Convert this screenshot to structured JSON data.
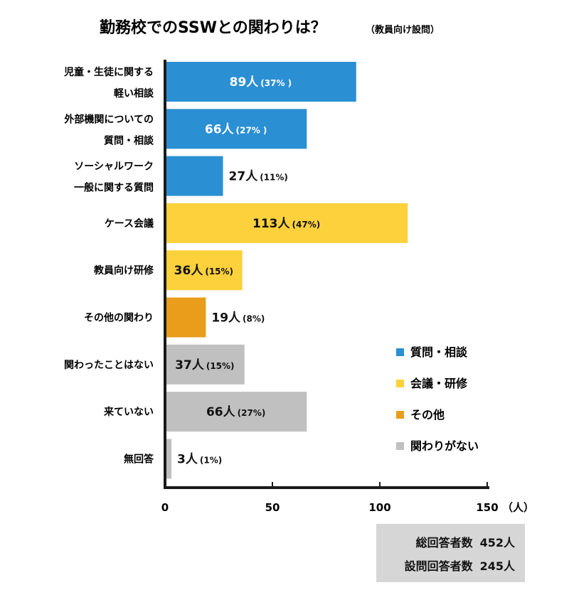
{
  "chart_data": {
    "type": "bar",
    "orientation": "horizontal",
    "title": "勤務校でのSSWとの関わりは？",
    "subtitle": "（教員向け設問）",
    "xlabel": "（人）",
    "xlim": [
      0,
      150
    ],
    "xticks": [
      "0",
      "50",
      "100",
      "150"
    ],
    "grid": false,
    "legend_position": "right",
    "categories": [
      {
        "lines": [
          "児童・生徒に関する",
          "軽い相談"
        ],
        "value": 89,
        "value_label": "89人",
        "pct_label": "(37% )",
        "group": 0
      },
      {
        "lines": [
          "外部機関についての",
          "質問・相談"
        ],
        "value": 66,
        "value_label": "66人",
        "pct_label": "(27% )",
        "group": 0
      },
      {
        "lines": [
          "ソーシャルワーク",
          "一般に関する質問"
        ],
        "value": 27,
        "value_label": "27人",
        "pct_label": "(11%)",
        "group": 0
      },
      {
        "lines": [
          "ケース会議"
        ],
        "value": 113,
        "value_label": "113人",
        "pct_label": "(47%)",
        "group": 1
      },
      {
        "lines": [
          "教員向け研修"
        ],
        "value": 36,
        "value_label": "36人",
        "pct_label": "(15%)",
        "group": 1
      },
      {
        "lines": [
          "その他の関わり"
        ],
        "value": 19,
        "value_label": "19人",
        "pct_label": "(8%)",
        "group": 2
      },
      {
        "lines": [
          "関わったことはない"
        ],
        "value": 37,
        "value_label": "37人",
        "pct_label": "(15%)",
        "group": 3
      },
      {
        "lines": [
          "来ていない"
        ],
        "value": 66,
        "value_label": "66人",
        "pct_label": "(27%)",
        "group": 3
      },
      {
        "lines": [
          "無回答"
        ],
        "value": 3,
        "value_label": "3人",
        "pct_label": "(1%)",
        "group": 3
      }
    ],
    "legend": [
      {
        "name": "質問・相談",
        "color": "#2b8fd3"
      },
      {
        "name": "会議・研修",
        "color": "#fdd13c"
      },
      {
        "name": "その他",
        "color": "#e99d1a"
      },
      {
        "name": "関わりがない",
        "color": "#c0c0c0"
      }
    ]
  },
  "totals": {
    "total_label": "総回答者数",
    "total_value": "452人",
    "answered_label": "設問回答者数",
    "answered_value": "245人"
  }
}
